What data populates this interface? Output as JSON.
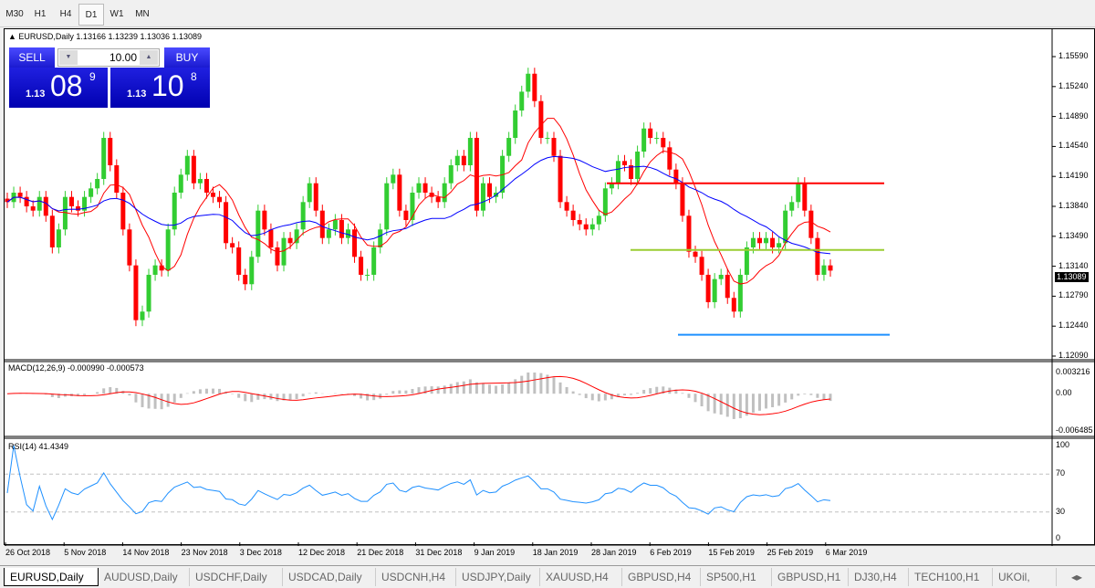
{
  "timeframes": [
    "M30",
    "H1",
    "H4",
    "D1",
    "W1",
    "MN"
  ],
  "active_timeframe": "D1",
  "chart": {
    "header": "EURUSD,Daily  1.13166 1.13239 1.13036 1.13089",
    "trade": {
      "sell_label": "SELL",
      "buy_label": "BUY",
      "volume": "10.00",
      "sell_big": "1.13",
      "sell_pips": "08",
      "sell_frac": "9",
      "buy_big": "1.13",
      "buy_pips": "10",
      "buy_frac": "8"
    },
    "price_ticks": [
      "1.15590",
      "1.15240",
      "1.14890",
      "1.14540",
      "1.14190",
      "1.13840",
      "1.13490",
      "1.13140",
      "1.12790",
      "1.12440",
      "1.12090"
    ],
    "current_price": "1.13089",
    "macd_label": "MACD(12,26,9) -0.000990 -0.000573",
    "macd_ticks": [
      "0.003216",
      "0.00",
      "-0.006485"
    ],
    "rsi_label": "RSI(14) 41.4349",
    "rsi_ticks": [
      "100",
      "70",
      "30",
      "0"
    ],
    "dates": [
      "26 Oct 2018",
      "5 Nov 2018",
      "14 Nov 2018",
      "23 Nov 2018",
      "3 Dec 2018",
      "12 Dec 2018",
      "21 Dec 2018",
      "31 Dec 2018",
      "9 Jan 2019",
      "18 Jan 2019",
      "28 Jan 2019",
      "6 Feb 2019",
      "15 Feb 2019",
      "25 Feb 2019",
      "6 Mar 2019"
    ],
    "colors": {
      "bull": "#32cd32",
      "bear": "#ff0000",
      "ma_fast": "#ff0000",
      "ma_slow": "#0000ff",
      "macd_hist": "#c0c0c0",
      "macd_signal": "#ff0000",
      "rsi": "#1e90ff"
    },
    "levels": [
      {
        "price": 1.1411,
        "color": "#ff0000"
      },
      {
        "price": 1.1333,
        "color": "#9acd32"
      },
      {
        "price": 1.1234,
        "color": "#1e90ff"
      }
    ]
  },
  "chart_data": {
    "type": "candlestick",
    "ylim": [
      1.1209,
      1.1594
    ],
    "close": [
      1.1389,
      1.14,
      1.1395,
      1.1384,
      1.1379,
      1.1395,
      1.1373,
      1.1336,
      1.1357,
      1.1395,
      1.1384,
      1.1379,
      1.1395,
      1.1405,
      1.1416,
      1.1464,
      1.1432,
      1.14,
      1.1357,
      1.1315,
      1.1251,
      1.1261,
      1.1304,
      1.1315,
      1.1309,
      1.1357,
      1.14,
      1.1421,
      1.1443,
      1.1411,
      1.1416,
      1.14,
      1.1395,
      1.1389,
      1.1341,
      1.1336,
      1.1304,
      1.1293,
      1.1325,
      1.1379,
      1.1357,
      1.1336,
      1.1315,
      1.1347,
      1.1341,
      1.1357,
      1.1389,
      1.1411,
      1.1379,
      1.1347,
      1.1357,
      1.1368,
      1.1347,
      1.1357,
      1.1325,
      1.1304,
      1.1304,
      1.1336,
      1.1357,
      1.1411,
      1.1421,
      1.1379,
      1.1368,
      1.14,
      1.1411,
      1.14,
      1.1395,
      1.1389,
      1.1411,
      1.1432,
      1.1443,
      1.1432,
      1.1464,
      1.1379,
      1.1411,
      1.1395,
      1.14,
      1.1443,
      1.1464,
      1.1496,
      1.1518,
      1.1539,
      1.1507,
      1.1464,
      1.1464,
      1.1443,
      1.1389,
      1.1379,
      1.1368,
      1.1363,
      1.1357,
      1.1363,
      1.1373,
      1.1405,
      1.1411,
      1.1437,
      1.1432,
      1.1416,
      1.1448,
      1.1475,
      1.1464,
      1.1464,
      1.1453,
      1.1427,
      1.1411,
      1.1373,
      1.1331,
      1.1325,
      1.1304,
      1.1272,
      1.1299,
      1.1304,
      1.1277,
      1.1261,
      1.1304,
      1.1336,
      1.1347,
      1.1341,
      1.1347,
      1.1336,
      1.1341,
      1.1379,
      1.1389,
      1.1411,
      1.1379,
      1.1347,
      1.1304,
      1.1315,
      1.13089
    ]
  },
  "tabs": [
    "EURUSD,Daily",
    "AUDUSD,Daily",
    "USDCHF,Daily",
    "USDCAD,Daily",
    "USDCNH,H4",
    "USDJPY,Daily",
    "XAUUSD,H4",
    "GBPUSD,H4",
    "SP500,H1",
    "GBPUSD,H1",
    "DJ30,H4",
    "TECH100,H1",
    "UKOil,"
  ],
  "active_tab": "EURUSD,Daily"
}
